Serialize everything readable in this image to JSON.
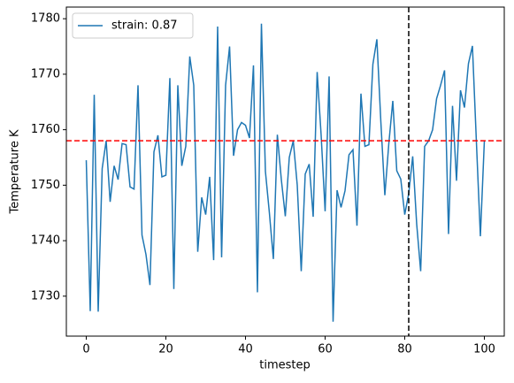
{
  "chart_data": {
    "type": "line",
    "x_label": "timestep",
    "y_label": "Temperature K",
    "x": [
      0,
      1,
      2,
      3,
      4,
      5,
      6,
      7,
      8,
      9,
      10,
      11,
      12,
      13,
      14,
      15,
      16,
      17,
      18,
      19,
      20,
      21,
      22,
      23,
      24,
      25,
      26,
      27,
      28,
      29,
      30,
      31,
      32,
      33,
      34,
      35,
      36,
      37,
      38,
      39,
      40,
      41,
      42,
      43,
      44,
      45,
      46,
      47,
      48,
      49,
      50,
      51,
      52,
      53,
      54,
      55,
      56,
      57,
      58,
      59,
      60,
      61,
      62,
      63,
      64,
      65,
      66,
      67,
      68,
      69,
      70,
      71,
      72,
      73,
      74,
      75,
      76,
      77,
      78,
      79,
      80,
      81,
      82,
      83,
      84,
      85,
      86,
      87,
      88,
      89,
      90,
      91,
      92,
      93,
      94,
      95,
      96,
      97,
      98,
      99,
      100
    ],
    "series": [
      {
        "name": "strain: 0.87",
        "color": "#1f77b4",
        "values": [
          1754.5,
          1727.3,
          1766.3,
          1727.2,
          1753,
          1758,
          1747,
          1753.5,
          1751,
          1757.5,
          1757.3,
          1749.7,
          1749.3,
          1768,
          1741,
          1737.5,
          1732,
          1756,
          1759,
          1751.5,
          1751.8,
          1769.3,
          1731.3,
          1768,
          1753.5,
          1757,
          1773.2,
          1768,
          1738,
          1747.8,
          1744.7,
          1751.5,
          1736.5,
          1778.6,
          1737,
          1768,
          1775,
          1755.3,
          1760,
          1761.3,
          1760.8,
          1758.5,
          1771.6,
          1730.7,
          1779.1,
          1752.5,
          1745,
          1736.7,
          1759.1,
          1751,
          1744.4,
          1755,
          1758,
          1750,
          1734.5,
          1752,
          1753.8,
          1744.3,
          1770.4,
          1759,
          1745.3,
          1769.6,
          1725.4,
          1749.1,
          1746,
          1749,
          1755.5,
          1756.4,
          1742.7,
          1766.5,
          1757,
          1757.3,
          1771.8,
          1776.3,
          1761.4,
          1748.2,
          1757.5,
          1765.2,
          1752.6,
          1751.1,
          1744.7,
          1748.5,
          1755.2,
          1743,
          1734.5,
          1757,
          1758,
          1760,
          1765.6,
          1768,
          1770.7,
          1741.2,
          1764.3,
          1750.8,
          1767.1,
          1764,
          1771.9,
          1775.1,
          1757.8,
          1740.8,
          1758
        ]
      }
    ],
    "hline": {
      "value": 1758,
      "color": "#ff0000"
    },
    "vline": {
      "value": 81,
      "color": "#000000"
    },
    "xlim": [
      -5,
      105
    ],
    "xticks": [
      0,
      20,
      40,
      60,
      80,
      100
    ],
    "ylim": [
      1722.8,
      1782.1
    ],
    "yticks": [
      1730,
      1740,
      1750,
      1760,
      1770,
      1780
    ],
    "legend": "upper left"
  }
}
